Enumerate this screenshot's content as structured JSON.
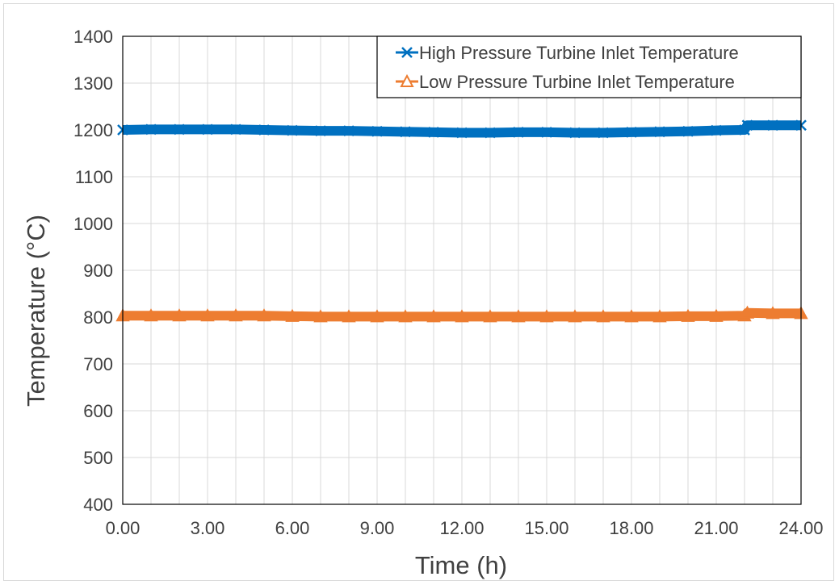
{
  "chart_data": {
    "type": "line",
    "title": "",
    "xlabel": "Time (h)",
    "ylabel": "Temperature (°C)",
    "xlim": [
      0,
      24
    ],
    "ylim": [
      400,
      1400
    ],
    "x_ticks": [
      "0.00",
      "3.00",
      "6.00",
      "9.00",
      "12.00",
      "15.00",
      "18.00",
      "21.00",
      "24.00"
    ],
    "y_ticks": [
      "400",
      "500",
      "600",
      "700",
      "800",
      "900",
      "1000",
      "1100",
      "1200",
      "1300",
      "1400"
    ],
    "grid": true,
    "legend_position": "top-right",
    "series": [
      {
        "name": "High Pressure Turbine Inlet Temperature",
        "color": "#0070c0",
        "marker": "x",
        "x": [
          0,
          1,
          2,
          3,
          4,
          5,
          6,
          7,
          8,
          9,
          10,
          11,
          12,
          13,
          14,
          15,
          16,
          17,
          18,
          19,
          20,
          21,
          22,
          22.1,
          23,
          24
        ],
        "y": [
          1200,
          1201,
          1201,
          1201,
          1201,
          1200,
          1199,
          1198,
          1198,
          1197,
          1196,
          1195,
          1194,
          1194,
          1195,
          1195,
          1194,
          1194,
          1195,
          1196,
          1197,
          1199,
          1200,
          1210,
          1210,
          1210
        ]
      },
      {
        "name": "Low Pressure Turbine Inlet Temperature",
        "color": "#ed7d31",
        "marker": "triangle",
        "x": [
          0,
          1,
          2,
          3,
          4,
          5,
          6,
          7,
          8,
          9,
          10,
          11,
          12,
          13,
          14,
          15,
          16,
          17,
          18,
          19,
          20,
          21,
          22,
          22.1,
          23,
          24
        ],
        "y": [
          803,
          803,
          803,
          803,
          803,
          803,
          802,
          801,
          801,
          801,
          801,
          801,
          801,
          801,
          801,
          801,
          801,
          801,
          801,
          801,
          802,
          802,
          803,
          809,
          808,
          808
        ]
      }
    ]
  }
}
